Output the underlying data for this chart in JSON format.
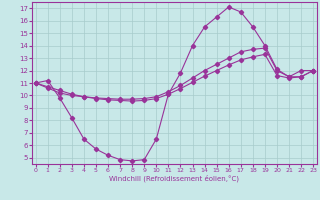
{
  "background_color": "#c8e8e8",
  "grid_color": "#a8cccc",
  "line_color": "#993399",
  "xlim": [
    -0.3,
    23.3
  ],
  "ylim": [
    4.5,
    17.5
  ],
  "xticks": [
    0,
    1,
    2,
    3,
    4,
    5,
    6,
    7,
    8,
    9,
    10,
    11,
    12,
    13,
    14,
    15,
    16,
    17,
    18,
    19,
    20,
    21,
    22,
    23
  ],
  "yticks": [
    5,
    6,
    7,
    8,
    9,
    10,
    11,
    12,
    13,
    14,
    15,
    16,
    17
  ],
  "xlabel": "Windchill (Refroidissement éolien,°C)",
  "line1_x": [
    0,
    1,
    2,
    3,
    4,
    5,
    6,
    7,
    8,
    9,
    10,
    11,
    12,
    13,
    14,
    15,
    16,
    17,
    18,
    19,
    20,
    21,
    22,
    23
  ],
  "line1_y": [
    11.0,
    11.2,
    9.8,
    8.2,
    6.5,
    5.7,
    5.2,
    4.85,
    4.75,
    4.85,
    6.5,
    10.1,
    11.8,
    14.0,
    15.5,
    16.3,
    17.1,
    16.7,
    15.5,
    14.0,
    12.1,
    11.5,
    12.0,
    12.0
  ],
  "line2_x": [
    0,
    1,
    2,
    3,
    4,
    5,
    6,
    7,
    8,
    9,
    10,
    11,
    12,
    13,
    14,
    15,
    16,
    17,
    18,
    19,
    20,
    21,
    22,
    23
  ],
  "line2_y": [
    11.0,
    10.6,
    10.2,
    10.0,
    9.9,
    9.8,
    9.75,
    9.7,
    9.7,
    9.75,
    9.9,
    10.3,
    10.8,
    11.4,
    12.0,
    12.5,
    13.0,
    13.5,
    13.7,
    13.8,
    12.0,
    11.5,
    11.5,
    12.0
  ],
  "line3_x": [
    0,
    1,
    2,
    3,
    4,
    5,
    6,
    7,
    8,
    9,
    10,
    11,
    12,
    13,
    14,
    15,
    16,
    17,
    18,
    19,
    20,
    21,
    22,
    23
  ],
  "line3_y": [
    11.0,
    10.7,
    10.4,
    10.1,
    9.9,
    9.75,
    9.65,
    9.6,
    9.55,
    9.6,
    9.75,
    10.1,
    10.55,
    11.05,
    11.55,
    12.0,
    12.45,
    12.85,
    13.1,
    13.3,
    11.6,
    11.4,
    11.5,
    12.0
  ],
  "tick_fontsize_x": 4.5,
  "tick_fontsize_y": 5.0,
  "xlabel_fontsize": 5.0,
  "marker_size": 2.2,
  "line_width": 0.8
}
